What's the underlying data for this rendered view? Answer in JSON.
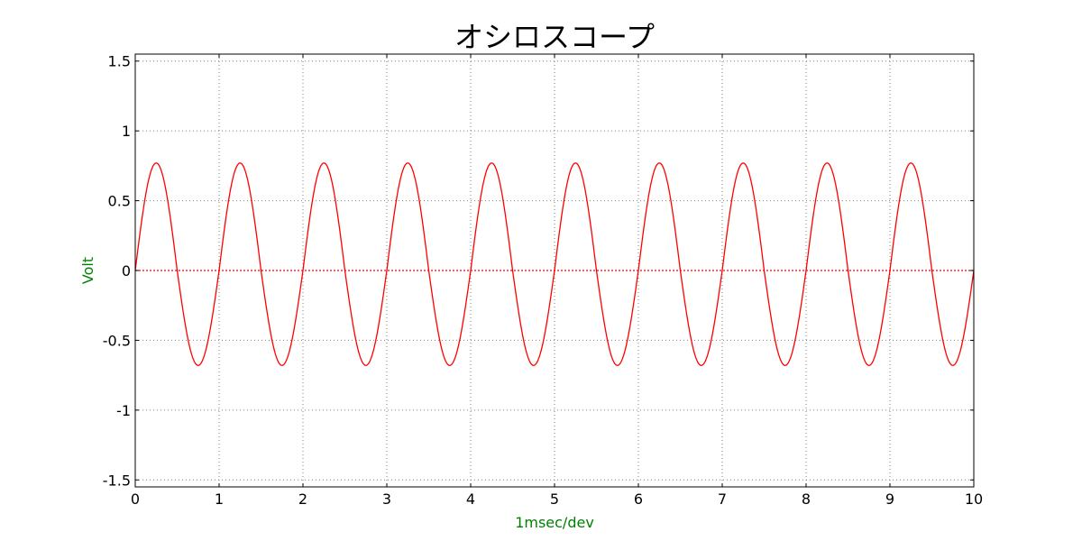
{
  "chart_data": {
    "type": "line",
    "title": "オシロスコープ",
    "xlabel": "1msec/dev",
    "ylabel": "Volt",
    "xlim": [
      0,
      10
    ],
    "ylim": [
      -1.55,
      1.55
    ],
    "x_ticks": [
      0,
      1,
      2,
      3,
      4,
      5,
      6,
      7,
      8,
      9,
      10
    ],
    "x_tick_labels": [
      "0",
      "1",
      "2",
      "3",
      "4",
      "5",
      "6",
      "7",
      "8",
      "9",
      "10"
    ],
    "y_ticks": [
      1.5,
      1,
      0.5,
      0,
      -0.5,
      -1,
      -1.5
    ],
    "y_tick_labels": [
      "1.5",
      "1",
      "0.5",
      "0",
      "-0.5",
      "-1",
      "-1.5"
    ],
    "grid": true,
    "series": [
      {
        "color": "#ff0000",
        "function": "sine",
        "frequency_cycles_per_unit": 1,
        "peak": 0.77,
        "trough": -0.68,
        "x_range": [
          0,
          10
        ]
      }
    ],
    "reference_line": {
      "y": 0,
      "color": "#ff0000",
      "style": "dotted"
    },
    "colors": {
      "axis_label": "#008000",
      "grid": "#808080"
    }
  }
}
